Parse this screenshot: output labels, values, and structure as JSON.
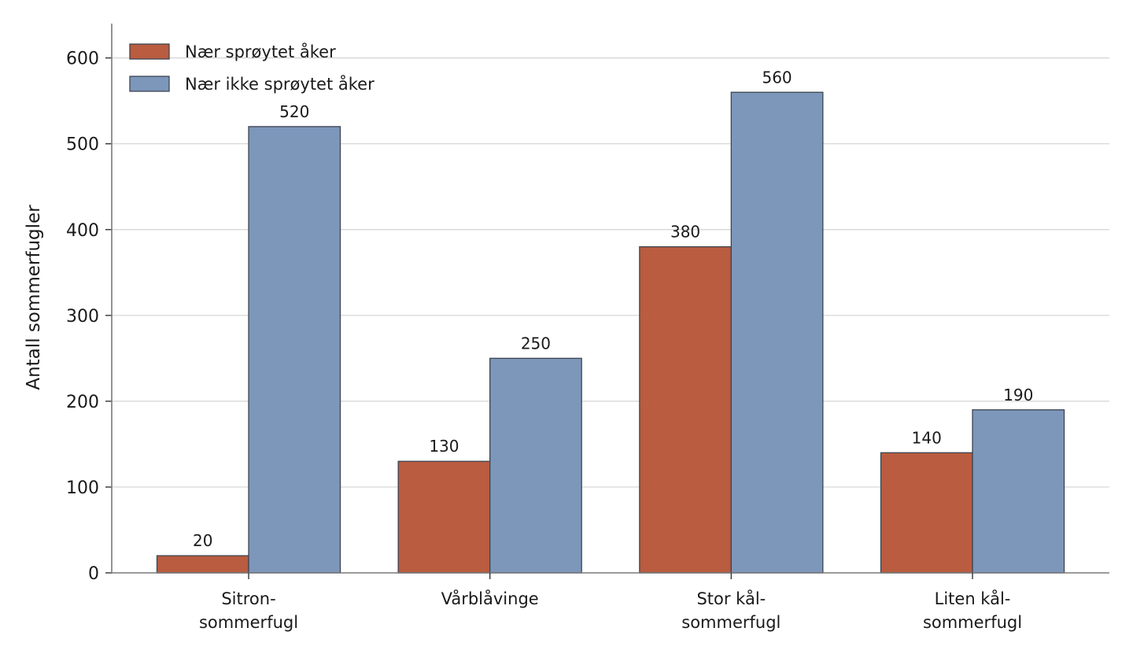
{
  "chart_data": {
    "type": "bar",
    "title": "",
    "xlabel": "",
    "ylabel": "Antall sommerfugler",
    "ylim": [
      0,
      640
    ],
    "yticks": [
      0,
      100,
      200,
      300,
      400,
      500,
      600
    ],
    "grid": true,
    "legend_position": "top-left",
    "categories": [
      [
        "Sitron-",
        "sommerfugl"
      ],
      [
        "Vårblåvinge"
      ],
      [
        "Stor kål-",
        "sommerfugl"
      ],
      [
        "Liten kål-",
        "sommerfugl"
      ]
    ],
    "series": [
      {
        "name": "Nær sprøytet åker",
        "color": "#b95c40",
        "values": [
          20,
          130,
          380,
          140
        ]
      },
      {
        "name": "Nær ikke sprøytet åker",
        "color": "#7d97bb",
        "values": [
          520,
          250,
          560,
          190
        ]
      }
    ]
  }
}
